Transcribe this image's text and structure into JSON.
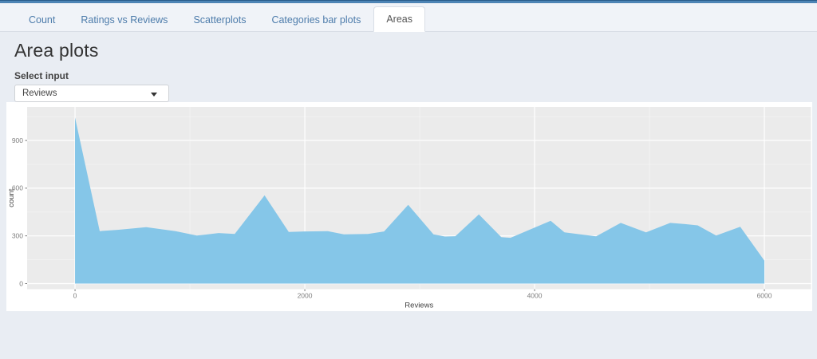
{
  "tabbar": {
    "tabs": [
      {
        "label": "Count",
        "active": false
      },
      {
        "label": "Ratings vs Reviews",
        "active": false
      },
      {
        "label": "Scatterplots",
        "active": false
      },
      {
        "label": "Categories bar plots",
        "active": false
      },
      {
        "label": "Areas",
        "active": true
      }
    ]
  },
  "page": {
    "title": "Area plots"
  },
  "select_input": {
    "label": "Select input",
    "value": "Reviews"
  },
  "chart_data": {
    "type": "area",
    "title": "",
    "xlabel": "Reviews",
    "ylabel": "count",
    "x": [
      0,
      215,
      370,
      620,
      875,
      1060,
      1250,
      1390,
      1650,
      1860,
      2010,
      2200,
      2340,
      2550,
      2690,
      2900,
      3120,
      3220,
      3310,
      3515,
      3710,
      3790,
      4140,
      4260,
      4535,
      4750,
      4970,
      5180,
      5310,
      5420,
      5580,
      5790,
      6000
    ],
    "values": [
      1045,
      330,
      338,
      355,
      330,
      302,
      318,
      312,
      555,
      325,
      328,
      330,
      310,
      312,
      328,
      495,
      310,
      296,
      298,
      435,
      292,
      288,
      395,
      322,
      297,
      382,
      322,
      382,
      374,
      366,
      302,
      357,
      145
    ],
    "xlim": [
      -417,
      6406
    ],
    "ylim": [
      -35,
      1111
    ],
    "xticks": [
      0,
      2000,
      4000,
      6000
    ],
    "xtick_labels": [
      "0",
      "2000",
      "4000",
      "6000"
    ],
    "yticks": [
      0,
      300,
      600,
      900
    ],
    "ytick_labels": [
      "0",
      "300",
      "600",
      "900"
    ],
    "xticks_minor": [
      1000,
      3000,
      5000
    ],
    "yticks_minor": [
      150,
      450,
      750,
      1050
    ],
    "grid": "on",
    "legend": "none",
    "fill_color": "#85c6e8",
    "panel_color": "#ebebeb",
    "grid_major_color": "#ffffff",
    "grid_minor_color": "#f5f5f5",
    "tick_text_color": "#7e7e7e",
    "axis_title_color": "#404040",
    "tick_mark_color": "#555555"
  }
}
